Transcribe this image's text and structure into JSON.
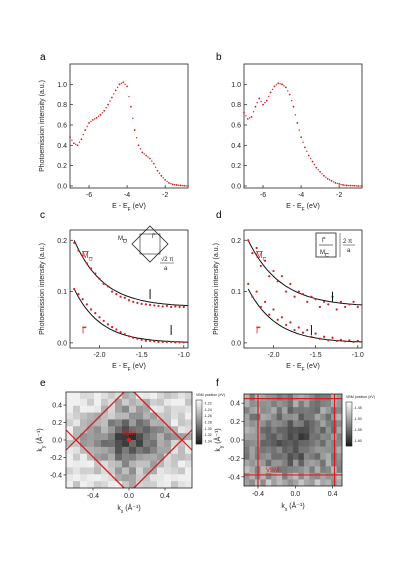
{
  "figure": {
    "background": "#ffffff",
    "accent": "#d42020",
    "frame": "#222222"
  },
  "chart_data": [
    {
      "panel": "a",
      "type": "scatter",
      "xlabel": "E - E",
      "xlabel_sub": "F",
      "xlabel_unit": " (eV)",
      "ylabel": "Photoemission intensity (a.u.)",
      "xlim": [
        -7.0,
        -0.8
      ],
      "ylim": [
        -0.02,
        1.2
      ],
      "xticks": [
        -6,
        -4,
        -2
      ],
      "yticks": [
        0.0,
        0.2,
        0.4,
        0.6,
        0.8,
        1.0
      ],
      "series": [
        {
          "color": "#d42020",
          "x": [
            -7.0,
            -6.8,
            -6.6,
            -6.4,
            -6.2,
            -6.0,
            -5.8,
            -5.6,
            -5.4,
            -5.2,
            -5.0,
            -4.8,
            -4.6,
            -4.4,
            -4.2,
            -4.0,
            -3.8,
            -3.6,
            -3.4,
            -3.2,
            -3.0,
            -2.8,
            -2.6,
            -2.4,
            -2.2,
            -2.0,
            -1.8,
            -1.6,
            -1.4,
            -1.2,
            -1.0,
            -0.8
          ],
          "y": [
            0.48,
            0.42,
            0.4,
            0.46,
            0.55,
            0.62,
            0.65,
            0.67,
            0.7,
            0.74,
            0.8,
            0.87,
            0.94,
            1.0,
            1.02,
            0.98,
            0.78,
            0.55,
            0.4,
            0.33,
            0.3,
            0.27,
            0.22,
            0.15,
            0.1,
            0.06,
            0.03,
            0.015,
            0.01,
            0.005,
            0.002,
            0.0
          ]
        }
      ]
    },
    {
      "panel": "b",
      "type": "scatter",
      "xlabel": "E - E",
      "xlabel_sub": "F",
      "xlabel_unit": " (eV)",
      "ylabel": "",
      "xlim": [
        -7.0,
        -0.8
      ],
      "ylim": [
        -0.02,
        1.2
      ],
      "xticks": [
        -6,
        -4,
        -2
      ],
      "yticks": [
        0.0,
        0.2,
        0.4,
        0.6,
        0.8,
        1.0
      ],
      "series": [
        {
          "color": "#d42020",
          "x": [
            -7.0,
            -6.8,
            -6.6,
            -6.4,
            -6.2,
            -6.0,
            -5.8,
            -5.6,
            -5.4,
            -5.2,
            -5.0,
            -4.8,
            -4.6,
            -4.4,
            -4.2,
            -4.0,
            -3.8,
            -3.6,
            -3.4,
            -3.2,
            -3.0,
            -2.8,
            -2.6,
            -2.4,
            -2.2,
            -2.0,
            -1.8,
            -1.6,
            -1.4,
            -1.2,
            -1.0,
            -0.8
          ],
          "y": [
            0.72,
            0.66,
            0.68,
            0.78,
            0.86,
            0.8,
            0.84,
            0.92,
            0.98,
            1.01,
            1.0,
            0.97,
            0.9,
            0.78,
            0.62,
            0.48,
            0.38,
            0.3,
            0.24,
            0.18,
            0.14,
            0.1,
            0.07,
            0.05,
            0.03,
            0.02,
            0.01,
            0.005,
            0.003,
            0.002,
            0.0,
            0.0
          ]
        }
      ]
    },
    {
      "panel": "c",
      "type": "scatter",
      "xlabel": "E - E",
      "xlabel_sub": "F",
      "xlabel_unit": " (eV)",
      "ylabel": "Photoemission intensity (a.u.)",
      "xlim": [
        -2.35,
        -0.95
      ],
      "ylim": [
        -0.01,
        0.22
      ],
      "xticks": [
        -2.0,
        -1.5,
        -1.0
      ],
      "xtick_labels": [
        "-2.0",
        "-1.5",
        "-1.0"
      ],
      "yticks": [
        0.0,
        0.1,
        0.2
      ],
      "series": [
        {
          "name": "M",
          "name_sub": "O",
          "color": "#d42020",
          "x": [
            -2.3,
            -2.25,
            -2.2,
            -2.15,
            -2.1,
            -2.05,
            -2.0,
            -1.95,
            -1.9,
            -1.85,
            -1.8,
            -1.75,
            -1.7,
            -1.65,
            -1.6,
            -1.55,
            -1.5,
            -1.45,
            -1.4,
            -1.35,
            -1.3,
            -1.25,
            -1.2,
            -1.15,
            -1.1,
            -1.05,
            -1.0
          ],
          "y": [
            0.195,
            0.18,
            0.17,
            0.155,
            0.145,
            0.135,
            0.125,
            0.115,
            0.11,
            0.1,
            0.095,
            0.09,
            0.088,
            0.083,
            0.08,
            0.078,
            0.076,
            0.075,
            0.074,
            0.073,
            0.072,
            0.071,
            0.072,
            0.07,
            0.071,
            0.07,
            0.07
          ]
        },
        {
          "name": "Γ",
          "name_sub": "",
          "color": "#d42020",
          "x": [
            -2.3,
            -2.25,
            -2.2,
            -2.15,
            -2.1,
            -2.05,
            -2.0,
            -1.95,
            -1.9,
            -1.85,
            -1.8,
            -1.75,
            -1.7,
            -1.65,
            -1.6,
            -1.55,
            -1.5,
            -1.45,
            -1.4,
            -1.35,
            -1.3,
            -1.25,
            -1.2,
            -1.15,
            -1.1,
            -1.05,
            -1.0
          ],
          "y": [
            0.105,
            0.095,
            0.085,
            0.075,
            0.065,
            0.058,
            0.05,
            0.043,
            0.036,
            0.031,
            0.026,
            0.021,
            0.017,
            0.013,
            0.01,
            0.008,
            0.006,
            0.004,
            0.004,
            0.003,
            0.002,
            0.002,
            0.002,
            0.002,
            0.001,
            0.001,
            0.001
          ]
        }
      ],
      "fits": [
        {
          "amp": 0.13,
          "decay": 2.9,
          "base": 0.07
        },
        {
          "amp": 0.105,
          "decay": 3.2,
          "base": 0.0
        }
      ],
      "markers": [
        {
          "x": -1.4,
          "y": 0.095
        },
        {
          "x": -1.15,
          "y": 0.025
        }
      ],
      "inset": {
        "label_top": "M",
        "label_top_sub": "O",
        "label_right": "Γ",
        "dim_numerator": "√2 π",
        "dim_denominator": "a",
        "shape": "diamond"
      }
    },
    {
      "panel": "d",
      "type": "scatter",
      "xlabel": "E - E",
      "xlabel_sub": "F",
      "xlabel_unit": " (eV)",
      "ylabel": "Photoemission intensity (a.u.)",
      "xlim": [
        -2.35,
        -0.95
      ],
      "ylim": [
        -0.01,
        0.22
      ],
      "xticks": [
        -2.0,
        -1.5,
        -1.0
      ],
      "xtick_labels": [
        "-2.0",
        "-1.5",
        "-1.0"
      ],
      "yticks": [
        0.0,
        0.1,
        0.2
      ],
      "series": [
        {
          "name": "M",
          "name_sub": "C",
          "color": "#d42020",
          "x": [
            -2.3,
            -2.25,
            -2.2,
            -2.15,
            -2.1,
            -2.05,
            -2.0,
            -1.95,
            -1.9,
            -1.85,
            -1.8,
            -1.75,
            -1.7,
            -1.65,
            -1.6,
            -1.55,
            -1.5,
            -1.45,
            -1.4,
            -1.35,
            -1.3,
            -1.25,
            -1.2,
            -1.15,
            -1.1,
            -1.05,
            -1.0
          ],
          "y": [
            0.2,
            0.175,
            0.185,
            0.15,
            0.16,
            0.13,
            0.14,
            0.12,
            0.13,
            0.1,
            0.115,
            0.09,
            0.1,
            0.095,
            0.08,
            0.09,
            0.085,
            0.07,
            0.08,
            0.075,
            0.09,
            0.065,
            0.08,
            0.07,
            0.075,
            0.08,
            0.07
          ]
        },
        {
          "name": "Γ",
          "name_sub": "",
          "color": "#d42020",
          "x": [
            -2.3,
            -2.25,
            -2.2,
            -2.15,
            -2.1,
            -2.05,
            -2.0,
            -1.95,
            -1.9,
            -1.85,
            -1.8,
            -1.75,
            -1.7,
            -1.65,
            -1.6,
            -1.55,
            -1.5,
            -1.45,
            -1.4,
            -1.35,
            -1.3,
            -1.25,
            -1.2,
            -1.15,
            -1.1,
            -1.05,
            -1.0
          ],
          "y": [
            0.115,
            0.09,
            0.1,
            0.07,
            0.08,
            0.055,
            0.065,
            0.045,
            0.05,
            0.035,
            0.04,
            0.025,
            0.03,
            0.02,
            0.025,
            0.012,
            0.018,
            0.008,
            0.012,
            0.005,
            0.01,
            0.004,
            0.006,
            0.003,
            0.005,
            0.002,
            0.004
          ]
        }
      ],
      "fits": [
        {
          "amp": 0.13,
          "decay": 2.6,
          "base": 0.07
        },
        {
          "amp": 0.105,
          "decay": 3.0,
          "base": 0.0
        }
      ],
      "markers": [
        {
          "x": -1.3,
          "y": 0.09
        },
        {
          "x": -1.55,
          "y": 0.025
        }
      ],
      "inset": {
        "label_top": "Γ",
        "label_bottom": "M",
        "label_bottom_sub": "C",
        "dim_numerator": "2 π",
        "dim_denominator": "a",
        "shape": "rectangle"
      }
    },
    {
      "panel": "e",
      "type": "heatmap",
      "xlabel": "k",
      "xlabel_sub": "x",
      "xlabel_unit": " (Å⁻¹)",
      "ylabel": "k",
      "ylabel_sub": "y",
      "ylabel_unit": " (Å⁻¹)",
      "xlim": [
        -0.7,
        0.7
      ],
      "ylim": [
        -0.55,
        0.55
      ],
      "xticks": [
        -0.4,
        0.0,
        0.4
      ],
      "xtick_labels": [
        "-0.4",
        "0.0",
        "0.4"
      ],
      "yticks": [
        -0.4,
        -0.2,
        0.0,
        0.2,
        0.4
      ],
      "ytick_labels": [
        "-0.4",
        "-0.2",
        "0.0",
        "0.2",
        "0.4"
      ],
      "annotation": "VBM",
      "colorbar_title": "VBM position (eV)",
      "colorbar_ticks": [
        "-1.34",
        "-1.32",
        "-1.30",
        "-1.28",
        "-1.26",
        "-1.24",
        "-1.22"
      ],
      "grid_shape": "diamond"
    },
    {
      "panel": "f",
      "type": "heatmap",
      "xlabel": "k",
      "xlabel_sub": "x",
      "xlabel_unit": " (Å⁻¹)",
      "ylabel": "k",
      "ylabel_sub": "y",
      "ylabel_unit": " (Å⁻¹)",
      "xlim": [
        -0.55,
        0.5
      ],
      "ylim": [
        -0.5,
        0.5
      ],
      "xticks": [
        -0.4,
        0.0,
        0.4
      ],
      "xtick_labels": [
        "-0.4",
        "0.0",
        "0.4"
      ],
      "yticks": [
        -0.4,
        -0.2,
        0.0,
        0.2,
        0.4
      ],
      "ytick_labels": [
        "-0.4",
        "-0.2",
        "0.0",
        "0.2",
        "0.4"
      ],
      "annotation": "VBM",
      "colorbar_title": "VBM position (eV)",
      "colorbar_ticks": [
        "-1.60",
        "-1.55",
        "-1.50",
        "-1.45"
      ],
      "grid_shape": "square"
    }
  ]
}
